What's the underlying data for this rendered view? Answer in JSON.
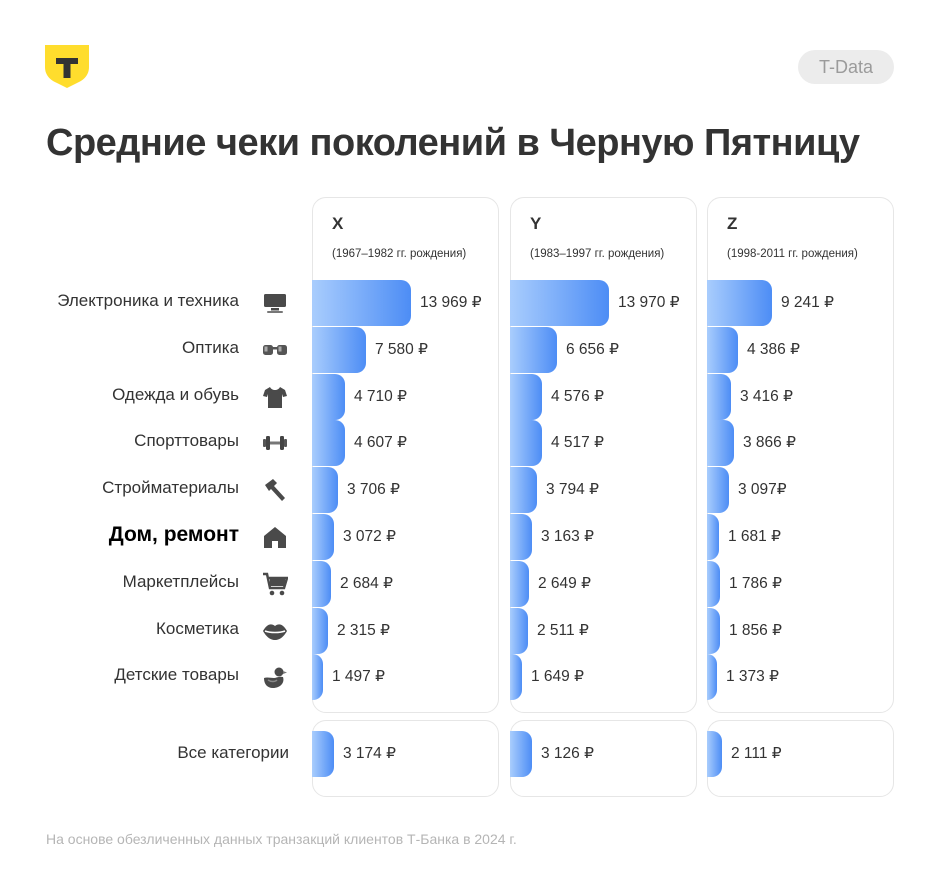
{
  "badge": "T-Data",
  "colors": {
    "bar_light": "#a9cdfd",
    "bar_dark": "#4d8df5",
    "logo_yellow": "#ffdd2d"
  },
  "chart_data": {
    "type": "bar",
    "title": "Средние чеки поколений в Черную Пятницу",
    "currency": "₽",
    "categories": [
      {
        "label": "Электроника и техника",
        "icon": "tv-icon"
      },
      {
        "label": "Оптика",
        "icon": "glasses-icon"
      },
      {
        "label": "Одежда и обувь",
        "icon": "tshirt-icon"
      },
      {
        "label": "Спорттовары",
        "icon": "dumbbell-icon"
      },
      {
        "label": "Стройматериалы",
        "icon": "hammer-icon"
      },
      {
        "label": "Дом, ремонт",
        "icon": "house-icon",
        "highlight": true
      },
      {
        "label": "Маркетплейсы",
        "icon": "cart-icon"
      },
      {
        "label": "Косметика",
        "icon": "lips-icon"
      },
      {
        "label": "Детские товары",
        "icon": "duck-icon"
      }
    ],
    "series": [
      {
        "name": "X",
        "subtitle": "(1967–1982 гг. рождения)",
        "values": [
          13969,
          7580,
          4710,
          4607,
          3706,
          3072,
          2684,
          2315,
          1497
        ],
        "labels": [
          "13 969 ₽",
          "7 580 ₽",
          "4 710 ₽",
          "4 607 ₽",
          "3 706 ₽",
          "3 072 ₽",
          "2 684 ₽",
          "2 315 ₽",
          "1 497 ₽"
        ],
        "total": 3174,
        "total_label": "3 174 ₽"
      },
      {
        "name": "Y",
        "subtitle": "(1983–1997 гг. рождения)",
        "values": [
          13970,
          6656,
          4576,
          4517,
          3794,
          3163,
          2649,
          2511,
          1649
        ],
        "labels": [
          "13 970 ₽",
          "6 656 ₽",
          "4 576 ₽",
          "4 517 ₽",
          "3 794 ₽",
          "3 163 ₽",
          "2 649 ₽",
          "2 511 ₽",
          "1 649 ₽"
        ],
        "total": 3126,
        "total_label": "3 126 ₽"
      },
      {
        "name": "Z",
        "subtitle": "(1998-2011 гг. рождения)",
        "values": [
          9241,
          4386,
          3416,
          3866,
          3097,
          1681,
          1786,
          1856,
          1373
        ],
        "labels": [
          "9 241 ₽",
          "4 386 ₽",
          "3 416 ₽",
          "3 866 ₽",
          "3 097₽",
          "1 681 ₽",
          "1 786 ₽",
          "1 856 ₽",
          "1 373 ₽"
        ],
        "total": 2111,
        "total_label": "2 111 ₽"
      }
    ],
    "total_label": "Все категории"
  },
  "footer": "На основе обезличенных данных транзакций клиентов Т-Банка в 2024 г."
}
